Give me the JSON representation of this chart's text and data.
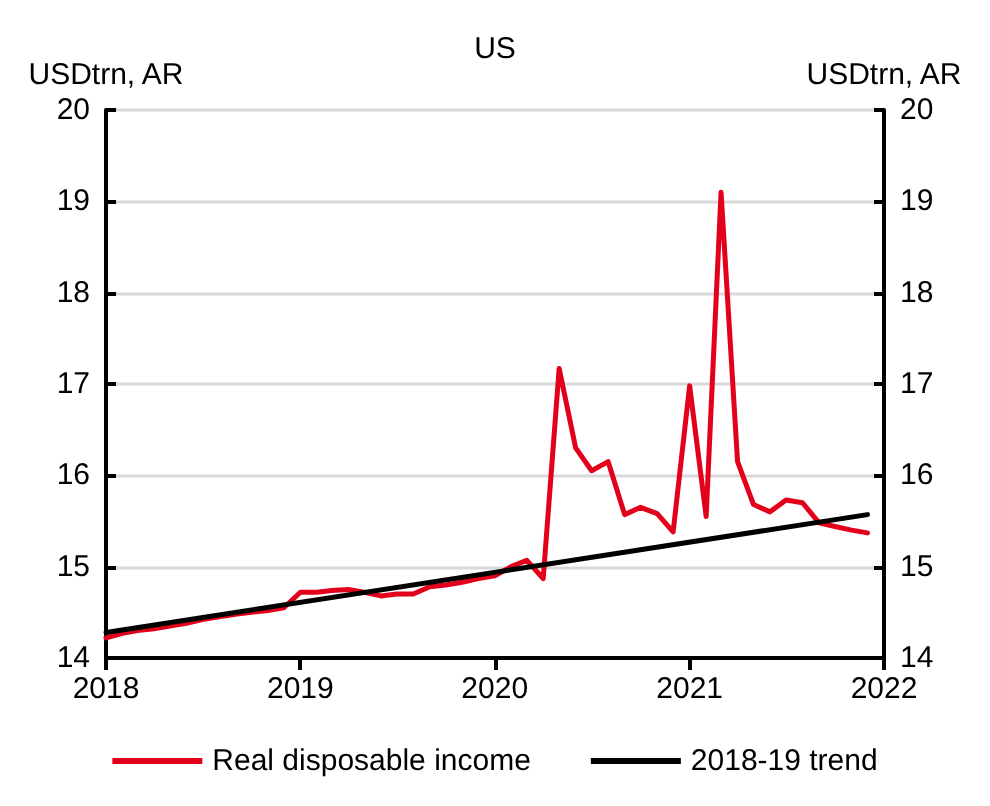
{
  "chart_data": {
    "type": "line",
    "title": "US",
    "ylabel": "USDtrn, AR",
    "y2label": "USDtrn, AR",
    "x": [
      "2018-01",
      "2018-02",
      "2018-03",
      "2018-04",
      "2018-05",
      "2018-06",
      "2018-07",
      "2018-08",
      "2018-09",
      "2018-10",
      "2018-11",
      "2018-12",
      "2019-01",
      "2019-02",
      "2019-03",
      "2019-04",
      "2019-05",
      "2019-06",
      "2019-07",
      "2019-08",
      "2019-09",
      "2019-10",
      "2019-11",
      "2019-12",
      "2020-01",
      "2020-02",
      "2020-03",
      "2020-04",
      "2020-05",
      "2020-06",
      "2020-07",
      "2020-08",
      "2020-09",
      "2020-10",
      "2020-11",
      "2020-12",
      "2021-01",
      "2021-02",
      "2021-03",
      "2021-04",
      "2021-05",
      "2021-06",
      "2021-07",
      "2021-08",
      "2021-09",
      "2021-10",
      "2021-11",
      "2021-12"
    ],
    "series": [
      {
        "name": "Real disposable income",
        "color": "#e2001a",
        "values": [
          14.22,
          14.27,
          14.3,
          14.32,
          14.35,
          14.38,
          14.42,
          14.45,
          14.48,
          14.5,
          14.52,
          14.55,
          14.72,
          14.72,
          14.74,
          14.75,
          14.72,
          14.68,
          14.7,
          14.7,
          14.78,
          14.8,
          14.83,
          14.87,
          14.9,
          15.0,
          15.07,
          14.87,
          17.17,
          16.3,
          16.05,
          16.15,
          15.57,
          15.65,
          15.58,
          15.38,
          16.98,
          15.55,
          19.1,
          16.15,
          15.68,
          15.6,
          15.73,
          15.7,
          15.48,
          15.44,
          15.4,
          15.37
        ]
      },
      {
        "name": "2018-19 trend",
        "color": "#000000",
        "x": [
          "2018-01",
          "2021-12"
        ],
        "values": [
          14.28,
          15.57
        ]
      }
    ],
    "xlim": [
      "2018",
      "2022"
    ],
    "xticks": [
      "2018",
      "2019",
      "2020",
      "2021",
      "2022"
    ],
    "ylim": [
      14,
      20
    ],
    "yticks": [
      14,
      15,
      16,
      17,
      18,
      19,
      20
    ],
    "y2lim": [
      14,
      20
    ],
    "y2ticks": [
      14,
      15,
      16,
      17,
      18,
      19,
      20
    ],
    "grid": "y",
    "legend": "bottom",
    "marker": "none",
    "line_style": "solid"
  }
}
